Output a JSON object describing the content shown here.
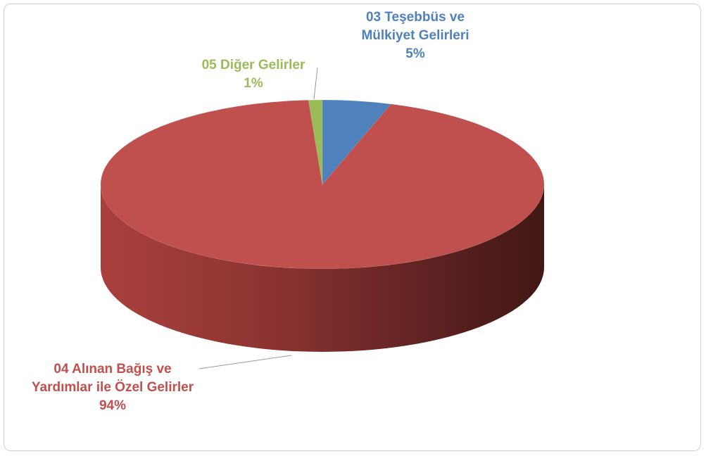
{
  "chart_data": {
    "type": "pie3d",
    "categories": [
      "03 Teşebbüs ve Mülkiyet Gelirleri",
      "04 Alınan Bağış ve Yardımlar ile Özel Gelirler",
      "05 Diğer Gelirler"
    ],
    "values": [
      5,
      94,
      1
    ],
    "value_labels": [
      "5%",
      "94%",
      "1%"
    ],
    "colors": [
      "#4f81bd",
      "#c0504d",
      "#9bbb59"
    ]
  }
}
